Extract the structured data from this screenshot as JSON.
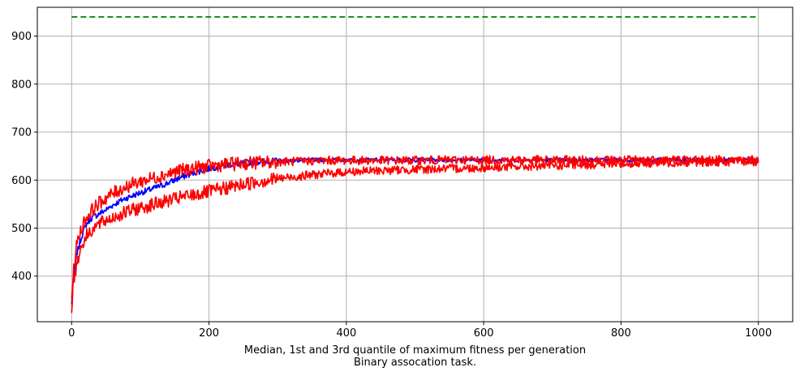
{
  "chart_data": {
    "type": "line",
    "title": "",
    "xlabel": "Median, 1st and 3rd quantile of maximum fitness per generation",
    "xlabel_line2": "Binary assocation task.",
    "ylabel": "",
    "xlim": [
      -50,
      1050
    ],
    "ylim": [
      305,
      960
    ],
    "xticks": [
      "0",
      "200",
      "400",
      "600",
      "800",
      "1000"
    ],
    "yticks": [
      "400",
      "500",
      "600",
      "700",
      "800",
      "900"
    ],
    "grid": true,
    "colors": {
      "median": "#0000ff",
      "quantiles": "#ff0000",
      "reference": "#008000"
    },
    "series": [
      {
        "role": "median",
        "color": "#0000ff",
        "x": [
          0,
          2,
          5,
          8,
          12,
          16,
          20,
          25,
          30,
          40,
          50,
          60,
          70,
          80,
          90,
          100,
          110,
          120,
          130,
          140,
          150,
          160,
          170,
          180,
          190,
          200,
          220,
          240,
          260,
          280,
          300,
          325,
          350,
          375,
          400,
          450,
          500,
          550,
          600,
          650,
          700,
          750,
          800,
          850,
          900,
          950,
          1000
        ],
        "y": [
          340,
          390,
          420,
          450,
          470,
          490,
          505,
          515,
          522,
          530,
          538,
          548,
          556,
          563,
          568,
          574,
          578,
          583,
          588,
          594,
          600,
          606,
          611,
          616,
          620,
          624,
          630,
          634,
          637,
          639,
          640,
          641,
          642,
          642,
          642,
          642,
          642,
          642,
          642,
          642,
          642,
          642,
          642,
          642,
          642,
          642,
          642
        ]
      },
      {
        "role": "quantile-3rd",
        "color": "#ff0000",
        "x": [
          0,
          2,
          5,
          8,
          12,
          16,
          20,
          25,
          30,
          40,
          50,
          60,
          70,
          80,
          90,
          100,
          110,
          120,
          130,
          140,
          150,
          160,
          170,
          180,
          190,
          200,
          220,
          240,
          260,
          280,
          300,
          325,
          350,
          375,
          400,
          450,
          500,
          550,
          600,
          650,
          700,
          750,
          800,
          850,
          900,
          950,
          1000
        ],
        "y": [
          340,
          400,
          440,
          470,
          490,
          505,
          518,
          528,
          538,
          552,
          563,
          572,
          580,
          587,
          592,
          597,
          601,
          605,
          609,
          613,
          617,
          620,
          623,
          625,
          627,
          629,
          632,
          634,
          636,
          637,
          638,
          639,
          640,
          641,
          641,
          641,
          641,
          642,
          642,
          642,
          642,
          642,
          642,
          643,
          643,
          642,
          642
        ]
      },
      {
        "role": "quantile-1st",
        "color": "#ff0000",
        "x": [
          0,
          2,
          5,
          8,
          12,
          16,
          20,
          25,
          30,
          40,
          50,
          60,
          70,
          80,
          90,
          100,
          110,
          120,
          130,
          140,
          150,
          160,
          170,
          180,
          190,
          200,
          220,
          240,
          260,
          280,
          300,
          325,
          350,
          375,
          400,
          450,
          500,
          550,
          600,
          650,
          700,
          750,
          800,
          850,
          900,
          950,
          1000
        ],
        "y": [
          335,
          380,
          405,
          430,
          452,
          468,
          480,
          490,
          498,
          508,
          516,
          522,
          528,
          533,
          538,
          542,
          546,
          550,
          553,
          557,
          560,
          564,
          567,
          570,
          573,
          576,
          582,
          588,
          594,
          599,
          603,
          607,
          611,
          614,
          617,
          620,
          622,
          624,
          626,
          628,
          630,
          632,
          634,
          636,
          637,
          638,
          639
        ]
      }
    ],
    "reference_line": {
      "y": 940,
      "x_from": 0,
      "x_to": 1000,
      "style": "dashed",
      "color": "#008000"
    }
  }
}
